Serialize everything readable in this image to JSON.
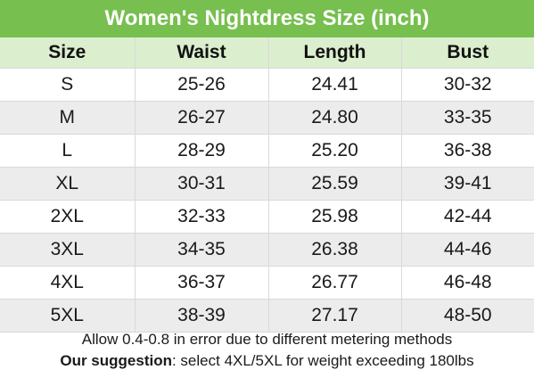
{
  "title": "Women's Nightdress Size (inch)",
  "table": {
    "headers": [
      "Size",
      "Waist",
      "Length",
      "Bust"
    ],
    "rows": [
      [
        "S",
        "25-26",
        "24.41",
        "30-32"
      ],
      [
        "M",
        "26-27",
        "24.80",
        "33-35"
      ],
      [
        "L",
        "28-29",
        "25.20",
        "36-38"
      ],
      [
        "XL",
        "30-31",
        "25.59",
        "39-41"
      ],
      [
        "2XL",
        "32-33",
        "25.98",
        "42-44"
      ],
      [
        "3XL",
        "34-35",
        "26.38",
        "44-46"
      ],
      [
        "4XL",
        "36-37",
        "26.77",
        "46-48"
      ],
      [
        "5XL",
        "38-39",
        "27.17",
        "48-50"
      ]
    ]
  },
  "footer": {
    "note": "Allow 0.4-0.8 in error due to different metering methods",
    "suggestion_label": "Our suggestion",
    "suggestion_text": ": select 4XL/5XL for weight exceeding 180lbs"
  },
  "colors": {
    "title_bg": "#77bf4f",
    "header_bg": "#dbeece",
    "row_alt_bg": "#ececec"
  }
}
